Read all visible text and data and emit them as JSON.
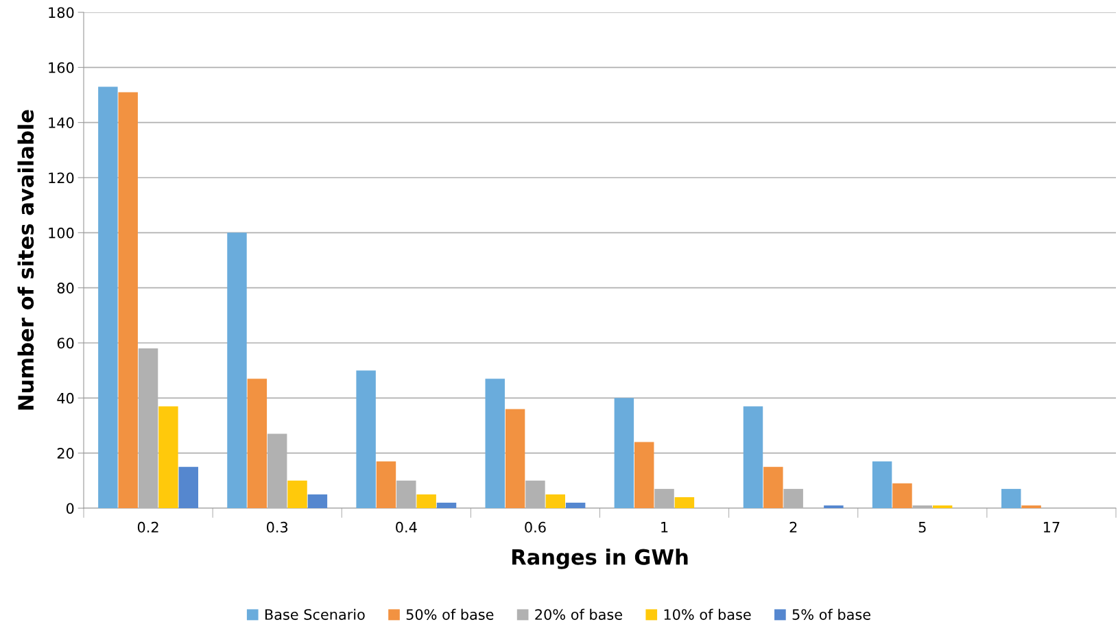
{
  "chart_data": {
    "type": "bar",
    "xlabel": "Ranges in GWh",
    "ylabel": "Number of sites available",
    "categories": [
      "0.2",
      "0.3",
      "0.4",
      "0.6",
      "1",
      "2",
      "5",
      "17"
    ],
    "series": [
      {
        "name": "Base Scenario",
        "color": "#6aacdc",
        "values": [
          153,
          100,
          50,
          47,
          40,
          37,
          17,
          7
        ]
      },
      {
        "name": "50% of base",
        "color": "#f29241",
        "values": [
          151,
          47,
          17,
          36,
          24,
          15,
          9,
          1
        ]
      },
      {
        "name": "20% of base",
        "color": "#b1b1b1",
        "values": [
          58,
          27,
          10,
          10,
          7,
          7,
          1,
          null
        ]
      },
      {
        "name": "10% of base",
        "color": "#ffc90b",
        "values": [
          37,
          10,
          5,
          5,
          4,
          null,
          1,
          null
        ]
      },
      {
        "name": "5% of base",
        "color": "#5587cf",
        "values": [
          15,
          5,
          2,
          2,
          null,
          1,
          null,
          null
        ]
      }
    ],
    "ylim": [
      0,
      180
    ],
    "yticks": [
      0,
      20,
      40,
      60,
      80,
      100,
      120,
      140,
      160,
      180
    ],
    "grid": "y",
    "legend": "bottom"
  }
}
